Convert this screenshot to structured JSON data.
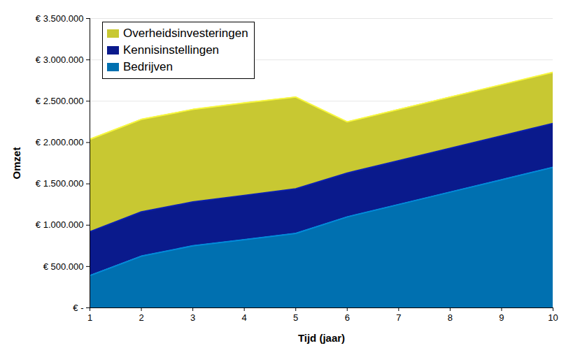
{
  "chart_data": {
    "type": "area",
    "stacked": true,
    "x_label": "Tijd (jaar)",
    "y_label": "Omzet",
    "x": [
      1,
      2,
      3,
      4,
      5,
      6,
      7,
      8,
      9,
      10
    ],
    "series": [
      {
        "name": "Bedrijven",
        "color": "#0070b0",
        "values": [
          390000,
          625000,
          750000,
          825000,
          900000,
          1100000,
          1250000,
          1400000,
          1550000,
          1700000
        ]
      },
      {
        "name": "Kennisinstellingen",
        "color": "#0a1a8c",
        "values": [
          530000,
          535000,
          530000,
          535000,
          540000,
          530000,
          530000,
          530000,
          530000,
          530000
        ]
      },
      {
        "name": "Overheidsinvesteringen",
        "color": "#c8c832",
        "values": [
          1120000,
          1120000,
          1120000,
          1120000,
          1110000,
          620000,
          620000,
          620000,
          620000,
          620000
        ]
      }
    ],
    "xlim": [
      1,
      10
    ],
    "xticks": [
      1,
      2,
      3,
      4,
      5,
      6,
      7,
      8,
      9,
      10
    ],
    "ylim": [
      0,
      3500000
    ],
    "yticks": [
      {
        "value": 0,
        "label": "€ -"
      },
      {
        "value": 500000,
        "label": "€ 500.000"
      },
      {
        "value": 1000000,
        "label": "€ 1.000.000"
      },
      {
        "value": 1500000,
        "label": "€ 1.500.000"
      },
      {
        "value": 2000000,
        "label": "€ 2.000.000"
      },
      {
        "value": 2500000,
        "label": "€ 2.500.000"
      },
      {
        "value": 3000000,
        "label": "€ 3.000.000"
      },
      {
        "value": 3500000,
        "label": "€ 3.500.000"
      }
    ],
    "grid": true,
    "legend": "top-left"
  }
}
